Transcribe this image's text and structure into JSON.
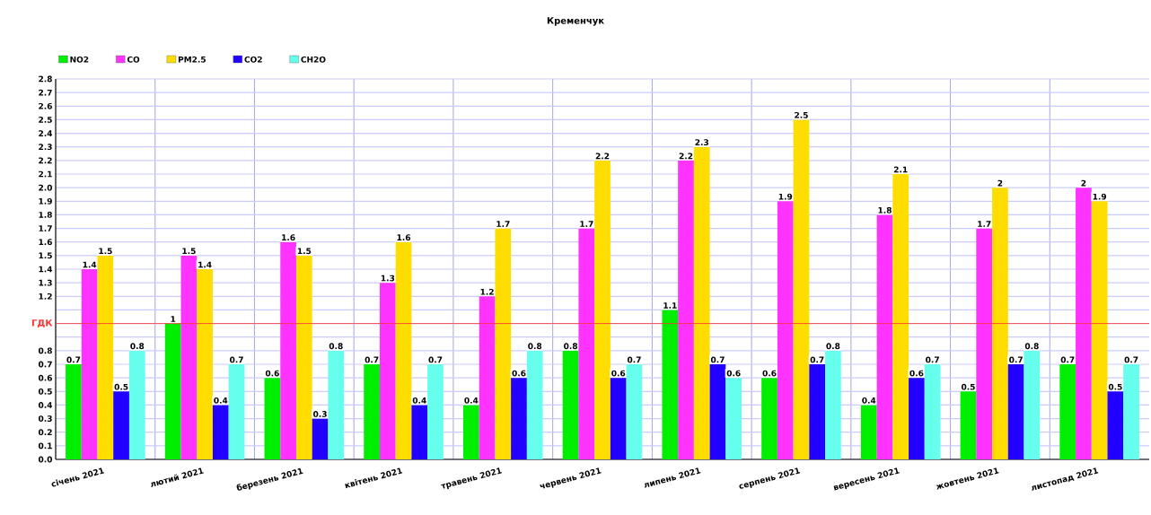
{
  "chart_data": {
    "type": "bar",
    "title": "Кременчук",
    "categories": [
      "січень 2021",
      "лютий 2021",
      "березень 2021",
      "квітень 2021",
      "травень 2021",
      "червень 2021",
      "липень 2021",
      "серпень 2021",
      "вересень 2021",
      "жовтень 2021",
      "листопад 2021"
    ],
    "series": [
      {
        "name": "NO2",
        "color": "#00ee00",
        "values": [
          0.7,
          1,
          0.6,
          0.7,
          0.4,
          0.8,
          1.1,
          0.6,
          0.4,
          0.5,
          0.7
        ]
      },
      {
        "name": "CO",
        "color": "#ff33ff",
        "values": [
          1.4,
          1.5,
          1.6,
          1.3,
          1.2,
          1.7,
          2.2,
          1.9,
          1.8,
          1.7,
          2
        ]
      },
      {
        "name": "PM2.5",
        "color": "#ffdd00",
        "values": [
          1.5,
          1.4,
          1.5,
          1.6,
          1.7,
          2.2,
          2.3,
          2.5,
          2.1,
          2,
          1.9
        ]
      },
      {
        "name": "CO2",
        "color": "#2200ff",
        "values": [
          0.5,
          0.4,
          0.3,
          0.4,
          0.6,
          0.6,
          0.7,
          0.7,
          0.6,
          0.7,
          0.5
        ]
      },
      {
        "name": "CH2O",
        "color": "#66ffee",
        "values": [
          0.8,
          0.7,
          0.8,
          0.7,
          0.8,
          0.7,
          0.6,
          0.8,
          0.7,
          0.8,
          0.7
        ]
      }
    ],
    "ylim": [
      0,
      2.8
    ],
    "yticks": [
      {
        "value": 0,
        "label": "0.0"
      },
      0.1,
      0.2,
      0.3,
      0.4,
      0.5,
      0.6,
      0.7,
      0.8,
      {
        "value": 0.9,
        "label": null
      },
      {
        "value": 1.0,
        "label": null
      },
      {
        "value": 1.1,
        "label": null
      },
      1.2,
      1.3,
      1.4,
      1.5,
      1.6,
      1.7,
      1.8,
      1.9,
      {
        "value": 2,
        "label": "2.0"
      },
      2.1,
      2.2,
      2.3,
      2.4,
      2.5,
      2.6,
      2.7,
      2.8
    ],
    "ref_lines": [
      {
        "axis": "y",
        "value": 1.0,
        "label": "ГДК",
        "color": "#ff3333"
      }
    ],
    "data_labels": true,
    "grid": true,
    "legend": "top left"
  }
}
